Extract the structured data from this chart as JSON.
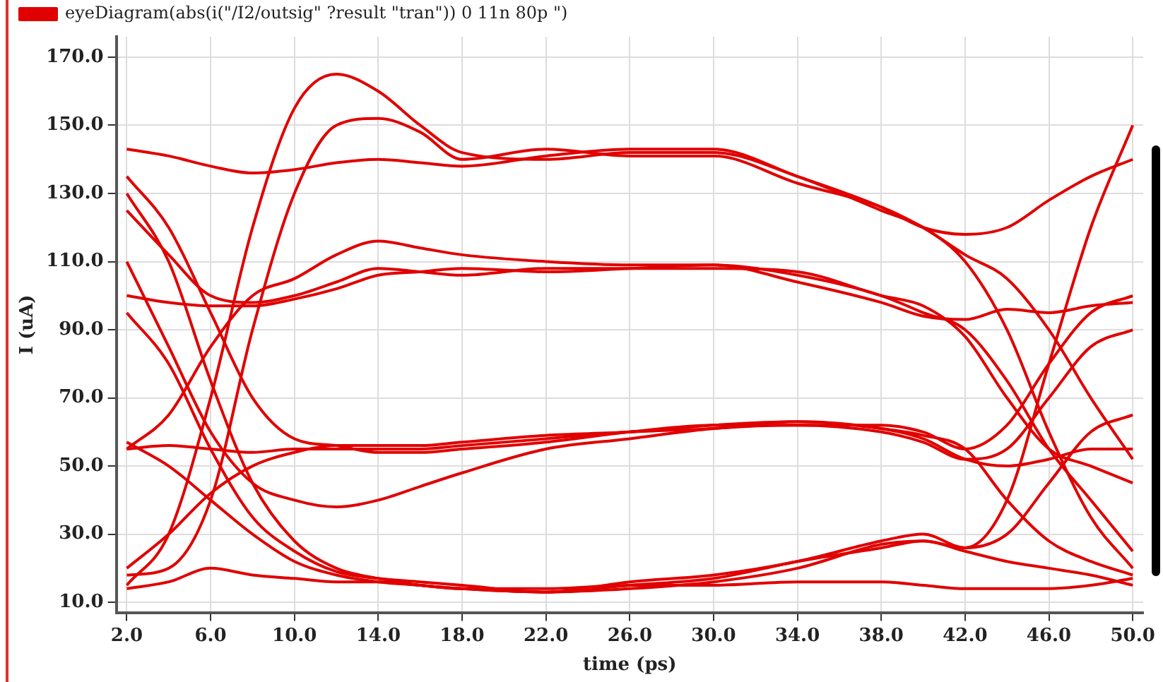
{
  "chart_data": {
    "type": "line",
    "xlabel": "time (ps)",
    "ylabel": "I (uA)",
    "legend": "top left",
    "grid": true,
    "marker": "none",
    "line_style": "solid",
    "xlim": [
      1.5,
      50.5
    ],
    "ylim": [
      7,
      176
    ],
    "xticks": [
      {
        "value": 2,
        "label": "2.0"
      },
      {
        "value": 6,
        "label": "6.0"
      },
      {
        "value": 10,
        "label": "10.0"
      },
      {
        "value": 14,
        "label": "14.0"
      },
      {
        "value": 18,
        "label": "18.0"
      },
      {
        "value": 22,
        "label": "22.0"
      },
      {
        "value": 26,
        "label": "26.0"
      },
      {
        "value": 30,
        "label": "30.0"
      },
      {
        "value": 34,
        "label": "34.0"
      },
      {
        "value": 38,
        "label": "38.0"
      },
      {
        "value": 42,
        "label": "42.0"
      },
      {
        "value": 46,
        "label": "46.0"
      },
      {
        "value": 50,
        "label": "50.0"
      }
    ],
    "yticks": [
      {
        "value": 10,
        "label": "10.0"
      },
      {
        "value": 30,
        "label": "30.0"
      },
      {
        "value": 50,
        "label": "50.0"
      },
      {
        "value": 70,
        "label": "70.0"
      },
      {
        "value": 90,
        "label": "90.0"
      },
      {
        "value": 110,
        "label": "110.0"
      },
      {
        "value": 130,
        "label": "130.0"
      },
      {
        "value": 150,
        "label": "150.0"
      },
      {
        "value": 170,
        "label": "170.0"
      }
    ],
    "x": [
      2,
      4,
      6,
      8,
      10,
      12,
      14,
      16,
      18,
      22,
      26,
      30,
      34,
      38,
      40,
      42,
      44,
      46,
      48,
      50
    ],
    "series": [
      {
        "name": "eyeDiagram(abs(i(\"/I2/outsig\" ?result \"tran\")) 0 11n 80p \")",
        "color": "#e00000",
        "values": [
          15,
          30,
          70,
          120,
          155,
          165,
          160,
          150,
          142,
          140,
          142,
          142,
          135,
          125,
          120,
          110,
          90,
          60,
          35,
          20
        ]
      },
      {
        "color": "#e00000",
        "values": [
          143,
          141,
          138,
          136,
          137,
          139,
          140,
          139,
          138,
          141,
          143,
          143,
          135,
          126,
          120,
          118,
          120,
          128,
          135,
          140
        ]
      },
      {
        "color": "#e00000",
        "values": [
          130,
          110,
          75,
          45,
          28,
          20,
          17,
          15,
          14,
          13,
          14,
          16,
          20,
          27,
          28,
          26,
          40,
          80,
          120,
          150
        ]
      },
      {
        "color": "#e00000",
        "values": [
          100,
          98,
          97,
          97,
          99,
          102,
          106,
          107,
          108,
          107,
          108,
          109,
          106,
          100,
          95,
          90,
          75,
          55,
          40,
          25
        ]
      },
      {
        "color": "#e00000",
        "values": [
          55,
          65,
          85,
          100,
          105,
          112,
          116,
          114,
          112,
          110,
          109,
          109,
          104,
          98,
          94,
          93,
          96,
          95,
          97,
          98
        ]
      },
      {
        "color": "#e00000",
        "values": [
          20,
          30,
          42,
          50,
          54,
          56,
          56,
          56,
          57,
          59,
          60,
          62,
          63,
          61,
          58,
          52,
          50,
          52,
          55,
          55
        ]
      },
      {
        "color": "#e00000",
        "values": [
          110,
          85,
          60,
          45,
          40,
          38,
          40,
          44,
          48,
          55,
          58,
          61,
          62,
          62,
          60,
          55,
          62,
          80,
          95,
          100
        ]
      },
      {
        "color": "#e00000",
        "values": [
          57,
          50,
          40,
          30,
          22,
          18,
          16,
          15,
          14,
          14,
          15,
          15,
          16,
          16,
          15,
          14,
          14,
          14,
          15,
          17
        ]
      },
      {
        "color": "#e00000",
        "values": [
          125,
          112,
          100,
          98,
          100,
          104,
          108,
          107,
          106,
          108,
          108,
          108,
          107,
          100,
          97,
          88,
          70,
          55,
          50,
          45
        ]
      },
      {
        "color": "#e00000",
        "values": [
          18,
          20,
          40,
          90,
          130,
          150,
          152,
          148,
          140,
          143,
          141,
          141,
          133,
          126,
          120,
          112,
          105,
          90,
          70,
          52
        ]
      },
      {
        "color": "#e00000",
        "values": [
          55,
          56,
          55,
          54,
          55,
          55,
          55,
          55,
          56,
          58,
          60,
          61,
          63,
          61,
          59,
          55,
          40,
          28,
          22,
          18
        ]
      },
      {
        "color": "#e00000",
        "values": [
          14,
          16,
          20,
          18,
          17,
          16,
          16,
          15,
          14,
          13,
          16,
          18,
          22,
          28,
          30,
          26,
          30,
          45,
          60,
          65
        ]
      },
      {
        "color": "#e00000",
        "values": [
          95,
          80,
          55,
          35,
          25,
          19,
          17,
          16,
          15,
          13,
          15,
          17,
          22,
          26,
          28,
          25,
          22,
          20,
          18,
          15
        ]
      },
      {
        "color": "#e00000",
        "values": [
          135,
          120,
          95,
          70,
          58,
          56,
          54,
          54,
          55,
          57,
          60,
          62,
          62,
          60,
          57,
          52,
          55,
          70,
          85,
          90
        ]
      }
    ]
  }
}
